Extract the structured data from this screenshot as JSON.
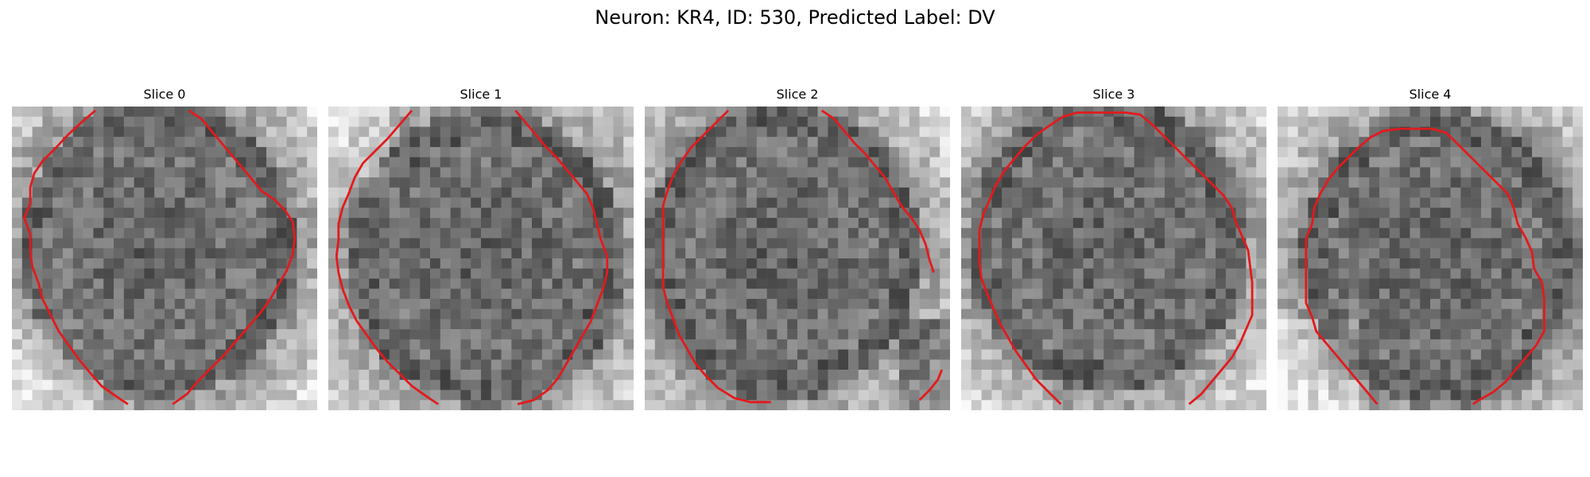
{
  "figure": {
    "title": "Neuron: KR4, ID: 530, Predicted Label: DV"
  },
  "panels": [
    {
      "title": "Slice 0",
      "seed": 11,
      "dark": [
        0.48,
        0.47
      ],
      "corner": "light-bottom-left"
    },
    {
      "title": "Slice 1",
      "seed": 23,
      "dark": [
        0.52,
        0.5
      ],
      "corner": "light-top-left"
    },
    {
      "title": "Slice 2",
      "seed": 37,
      "dark": [
        0.45,
        0.48
      ],
      "corner": "dark-bottom-right"
    },
    {
      "title": "Slice 3",
      "seed": 41,
      "dark": [
        0.48,
        0.45
      ],
      "corner": "light-edges"
    },
    {
      "title": "Slice 4",
      "seed": 59,
      "dark": [
        0.53,
        0.5
      ],
      "corner": "light-bottom-left"
    }
  ],
  "contour_color": "#e31a1c"
}
